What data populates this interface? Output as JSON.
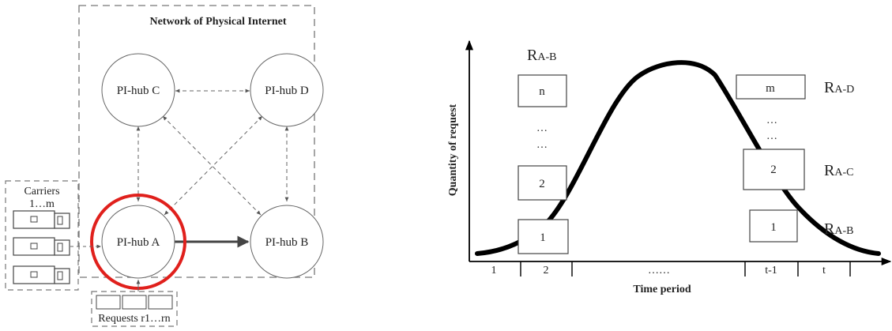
{
  "network": {
    "title": "Network of Physical Internet",
    "hub_c": "PI-hub C",
    "hub_d": "PI-hub D",
    "hub_a": "PI-hub A",
    "hub_b": "PI-hub B",
    "carriers_label_1": "Carriers",
    "carriers_label_2": "1…m",
    "requests_label": "Requests r1…rn",
    "highlight_color": "#e0201c"
  },
  "chart": {
    "ylabel": "Quantity of request",
    "xlabel": "Time period",
    "periods": [
      "1",
      "2",
      "……",
      "t-1",
      "t"
    ],
    "left_group_label": {
      "main": "R",
      "sub": "A-B"
    },
    "left_boxes": [
      "n",
      "2",
      "1"
    ],
    "left_dots": [
      "…",
      "…"
    ],
    "right_boxes": [
      "m",
      "2",
      "1"
    ],
    "right_dots": [
      "…",
      "…"
    ],
    "right_labels": [
      {
        "main": "R",
        "sub": "A-D"
      },
      {
        "main": "R",
        "sub": "A-C"
      },
      {
        "main": "R",
        "sub": "A-B"
      }
    ]
  }
}
